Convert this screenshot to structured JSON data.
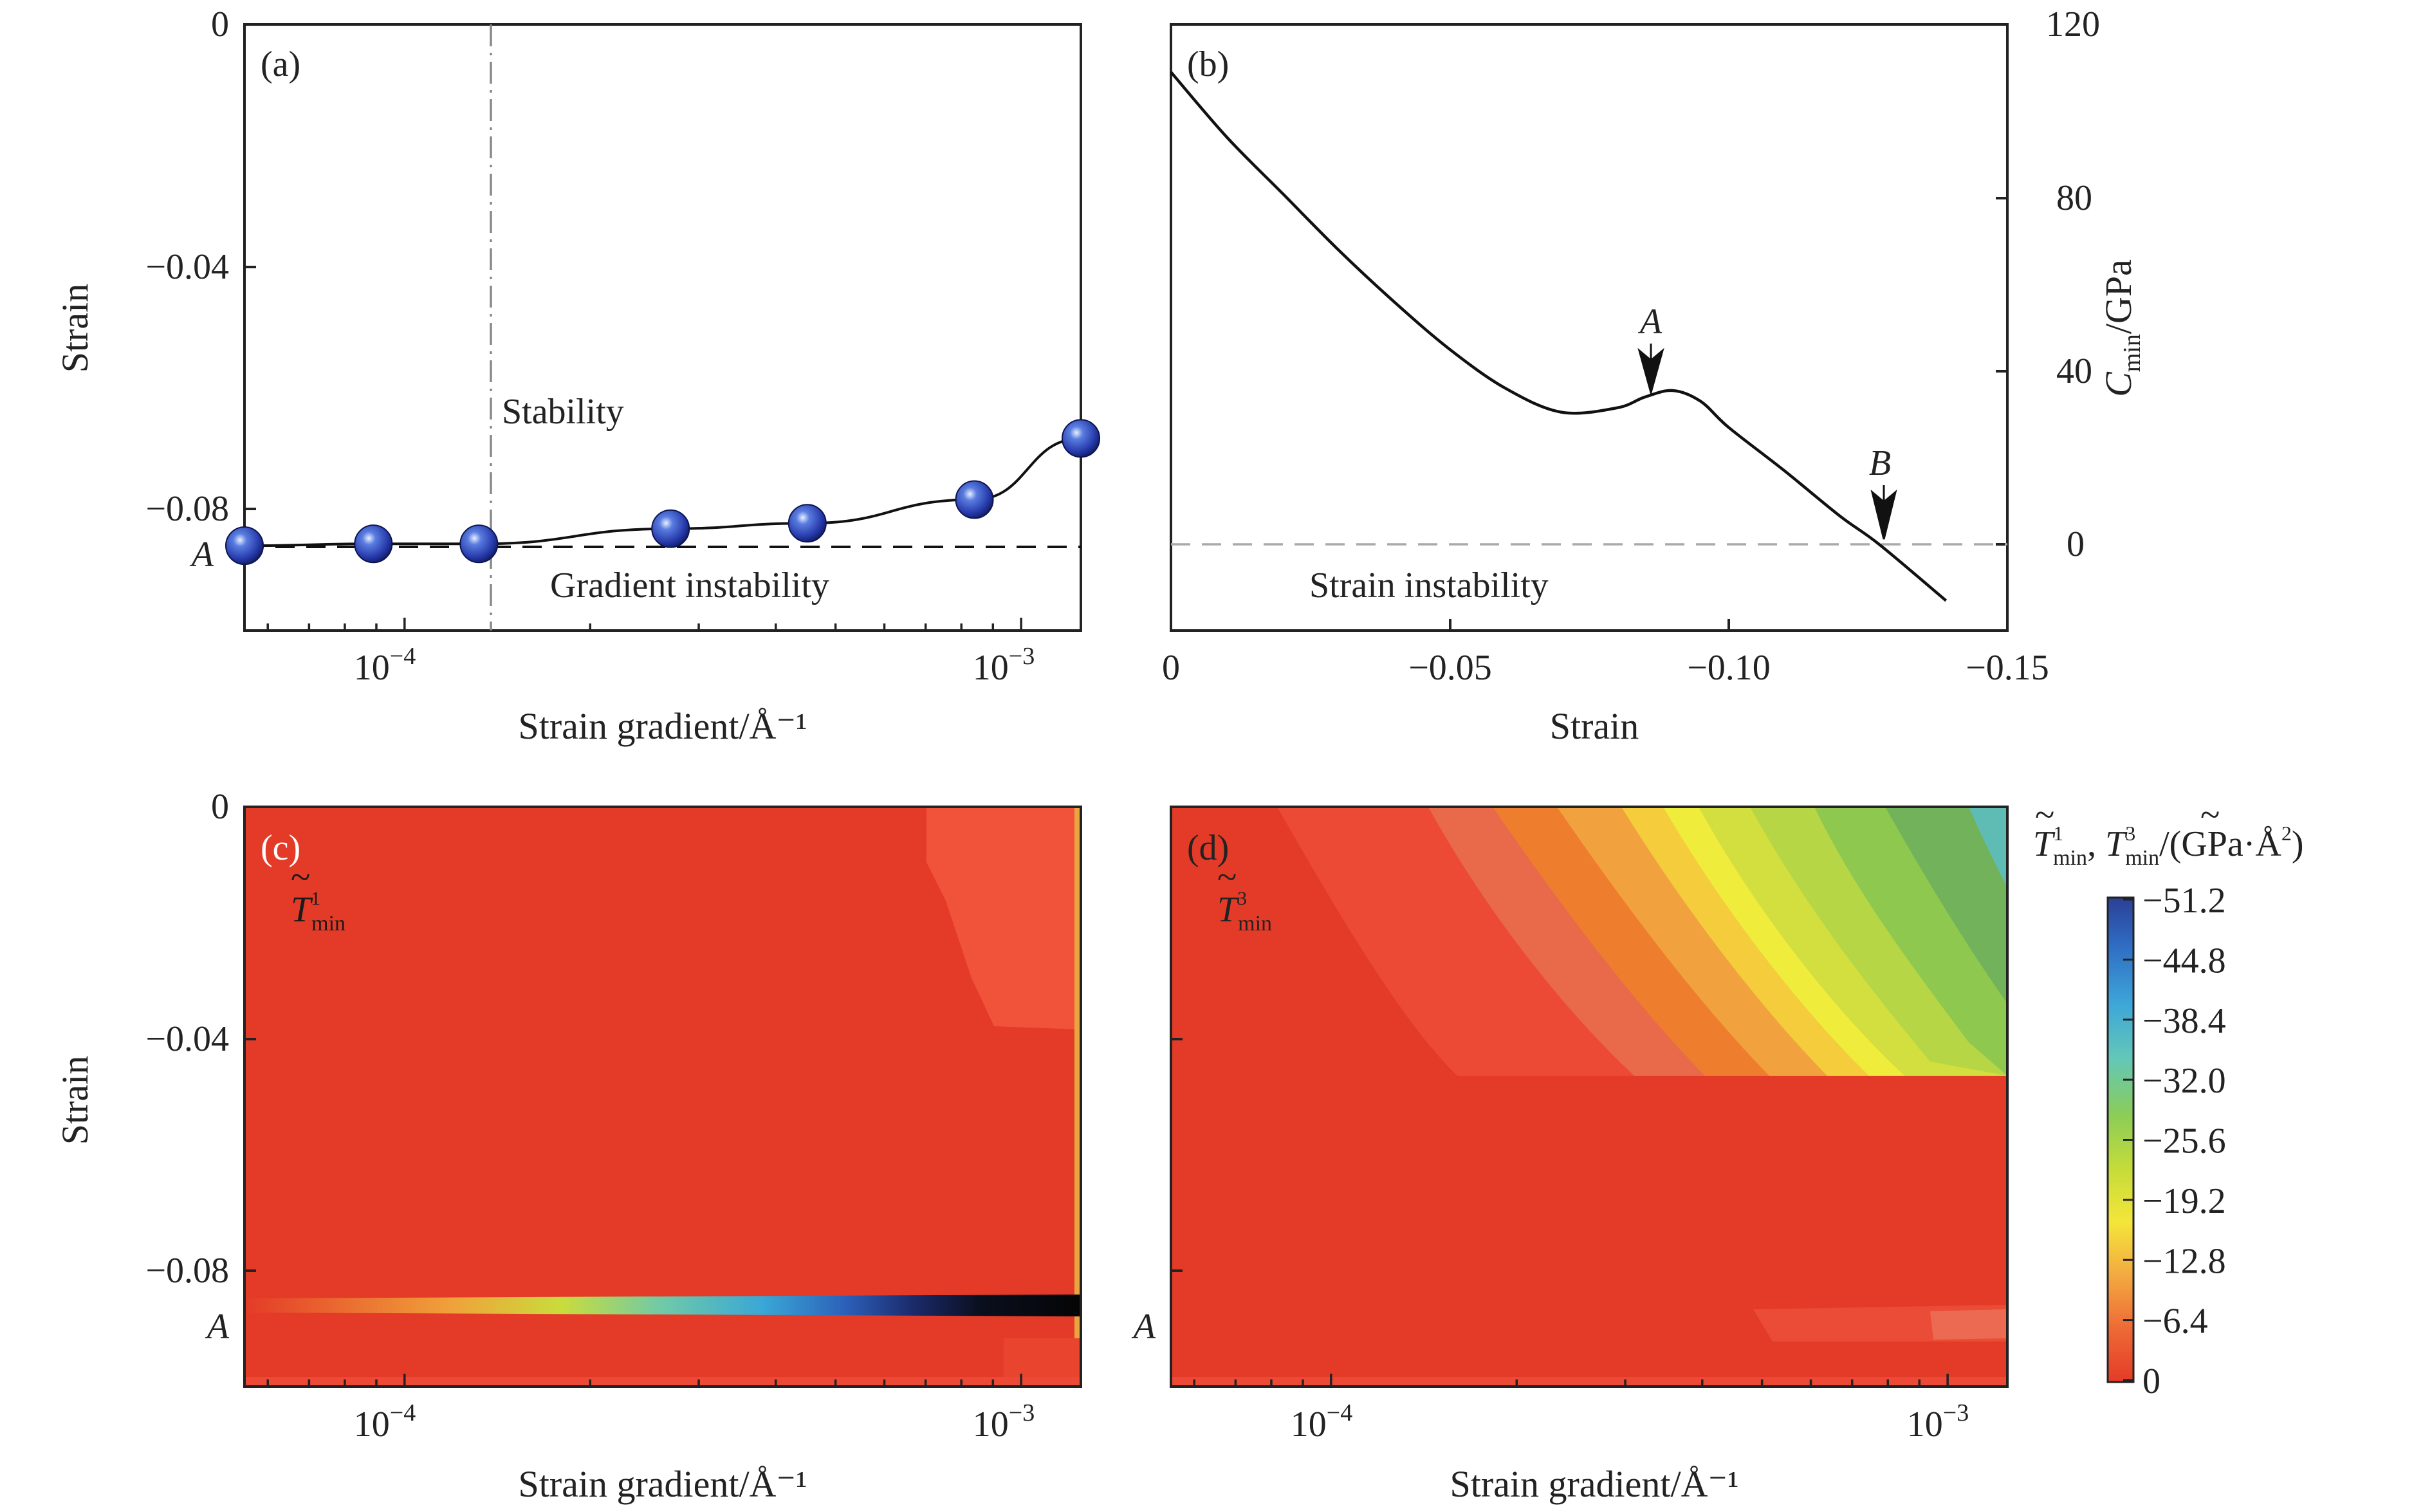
{
  "chart_data": [
    {
      "panel": "(a)",
      "type": "scatter",
      "xscale": "log",
      "xlabel": "Strain gradient/Å⁻¹",
      "ylabel": "Strain",
      "xlim": [
        5.5e-05,
        0.00125
      ],
      "ylim": [
        -0.1,
        0
      ],
      "yticks": [
        "0",
        "−0.04",
        "−0.08"
      ],
      "xticks": [
        "10⁻⁴",
        "10⁻³"
      ],
      "points": [
        {
          "x": 5.5e-05,
          "y": -0.086
        },
        {
          "x": 8.9e-05,
          "y": -0.0857
        },
        {
          "x": 0.000132,
          "y": -0.0857
        },
        {
          "x": 0.00027,
          "y": -0.0832
        },
        {
          "x": 0.00045,
          "y": -0.0823
        },
        {
          "x": 0.00084,
          "y": -0.0784
        },
        {
          "x": 0.00125,
          "y": -0.0683
        }
      ],
      "threshold_x": 0.00015,
      "threshold_y": -0.086,
      "annotations": {
        "stability": "Stability",
        "instability": "Gradient instability",
        "a_marker": "A"
      }
    },
    {
      "panel": "(b)",
      "type": "line",
      "xlabel": "Strain",
      "ylabel": "C_min/GPa",
      "xlim": [
        0,
        -0.15
      ],
      "ylim": [
        -20,
        120
      ],
      "xticks": [
        "0",
        "−0.05",
        "−0.10",
        "−0.15"
      ],
      "yticks": [
        "0",
        "40",
        "80",
        "120"
      ],
      "x": [
        0,
        -0.01,
        -0.02,
        -0.03,
        -0.04,
        -0.05,
        -0.06,
        -0.07,
        -0.08,
        -0.085,
        -0.09,
        -0.095,
        -0.1,
        -0.11,
        -0.12,
        -0.127,
        -0.139
      ],
      "y": [
        109,
        94,
        81,
        68,
        56,
        45,
        36,
        30.5,
        31.5,
        34,
        35.5,
        33,
        27,
        17,
        6.5,
        0,
        -13
      ],
      "markers": [
        {
          "label": "A",
          "x": -0.086,
          "y": 35.5
        },
        {
          "label": "B",
          "x": -0.127,
          "y": 0
        }
      ],
      "annotations": {
        "instability": "Strain instability"
      }
    },
    {
      "panel": "(c)",
      "type": "heatmap",
      "xscale": "log",
      "xlabel": "Strain gradient/Å⁻¹",
      "ylabel": "Strain",
      "xlim": [
        5.5e-05,
        0.00125
      ],
      "ylim": [
        -0.1,
        0
      ],
      "yticks": [
        "0",
        "−0.04",
        "−0.08"
      ],
      "xticks": [
        "10⁻⁴",
        "10⁻³"
      ],
      "field": "T~¹min",
      "a_marker": "A"
    },
    {
      "panel": "(d)",
      "type": "heatmap",
      "xscale": "log",
      "xlabel": "Strain gradient/Å⁻¹",
      "xlim": [
        5.5e-05,
        0.00125
      ],
      "ylim": [
        -0.1,
        0
      ],
      "xticks": [
        "10⁻⁴",
        "10⁻³"
      ],
      "field": "T~³min",
      "a_marker": "A",
      "colorbar": {
        "title": "T~¹min, T~³min/(GPa·Å²)",
        "ticks": [
          "−51.2",
          "−44.8",
          "−38.4",
          "−32.0",
          "−25.6",
          "−19.2",
          "−12.8",
          "−6.4",
          "0"
        ],
        "colors": [
          "#2b3f95",
          "#2f6dc4",
          "#3ea6d8",
          "#62c7b8",
          "#8ccd57",
          "#c5dc3a",
          "#f4e63a",
          "#f3a941",
          "#ee6a35",
          "#e43b28"
        ]
      }
    }
  ],
  "labels": {
    "a_panel": "(a)",
    "b_panel": "(b)",
    "c_panel": "(c)",
    "d_panel": "(d)",
    "a_ylabel": "Strain",
    "a_xlabel": "Strain gradient/Å⁻¹",
    "b_xlabel": "Strain",
    "b_ylabel": "C",
    "b_ylabel_sub": "min",
    "b_ylabel_rest": "/GPa",
    "c_ylabel": "Strain",
    "c_xlabel": "Strain gradient/Å⁻¹",
    "d_xlabel": "Strain gradient/Å⁻¹",
    "stability": "Stability",
    "gradient_instability": "Gradient instability",
    "strain_instability": "Strain instability",
    "marker_A": "A",
    "marker_B": "B",
    "c_field": "T",
    "c_field_sup": "1",
    "c_field_sub": "min",
    "d_field": "T",
    "d_field_sup": "3",
    "d_field_sub": "min",
    "cb_title": "T¹min, T³min/(GPa·Å²)",
    "cb_t1": "T",
    "cb_t1_sup": "1",
    "cb_t1_sub": "min",
    "cb_sep": ", ",
    "cb_t3": "T",
    "cb_t3_sup": "3",
    "cb_t3_sub": "min",
    "cb_unit": "/(GPa·Å",
    "cb_unit_sup": "2",
    "cb_unit_end": ")",
    "tick_0": "0",
    "tick_m004": "−0.04",
    "tick_m008": "−0.08",
    "tick_1e4": "10",
    "tick_1e4_sup": "−4",
    "tick_1e3": "10",
    "tick_1e3_sup": "−3",
    "tick_b_0": "0",
    "tick_b_m005": "−0.05",
    "tick_b_m010": "−0.10",
    "tick_b_m015": "−0.15",
    "tick_b_y0": "0",
    "tick_b_y40": "40",
    "tick_b_y80": "80",
    "tick_b_y120": "120"
  }
}
